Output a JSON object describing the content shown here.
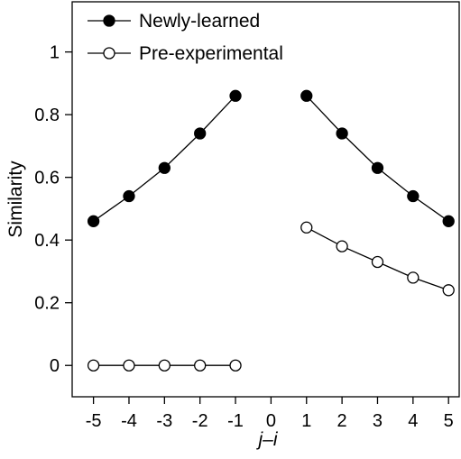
{
  "chart_data": {
    "type": "line",
    "xlabel": "j–i",
    "ylabel": "Similarity",
    "xlim": [
      -5.6,
      5.3
    ],
    "ylim": [
      -0.1,
      1.16
    ],
    "x_ticks": [
      -5,
      -4,
      -3,
      -2,
      -1,
      0,
      1,
      2,
      3,
      4,
      5
    ],
    "x_tick_labels": [
      "-5",
      "-4",
      "-3",
      "-2",
      "-1",
      "0",
      "1",
      "2",
      "3",
      "4",
      "5"
    ],
    "y_ticks": [
      0,
      0.2,
      0.4,
      0.6,
      0.8,
      1
    ],
    "y_tick_labels": [
      "0",
      "0.2",
      "0.4",
      "0.6",
      "0.8",
      "1"
    ],
    "grid": false,
    "legend_position": "top-left",
    "series": [
      {
        "name": "Newly-learned",
        "marker": "filled-circle",
        "segments": [
          {
            "x": [
              -5,
              -4,
              -3,
              -2,
              -1
            ],
            "y": [
              0.46,
              0.54,
              0.63,
              0.74,
              0.86
            ]
          },
          {
            "x": [
              1,
              2,
              3,
              4,
              5
            ],
            "y": [
              0.86,
              0.74,
              0.63,
              0.54,
              0.46
            ]
          }
        ]
      },
      {
        "name": "Pre-experimental",
        "marker": "open-circle",
        "segments": [
          {
            "x": [
              -5,
              -4,
              -3,
              -2,
              -1
            ],
            "y": [
              0,
              0,
              0,
              0,
              0
            ]
          },
          {
            "x": [
              1,
              2,
              3,
              4,
              5
            ],
            "y": [
              0.44,
              0.38,
              0.33,
              0.28,
              0.24
            ]
          }
        ]
      }
    ]
  }
}
